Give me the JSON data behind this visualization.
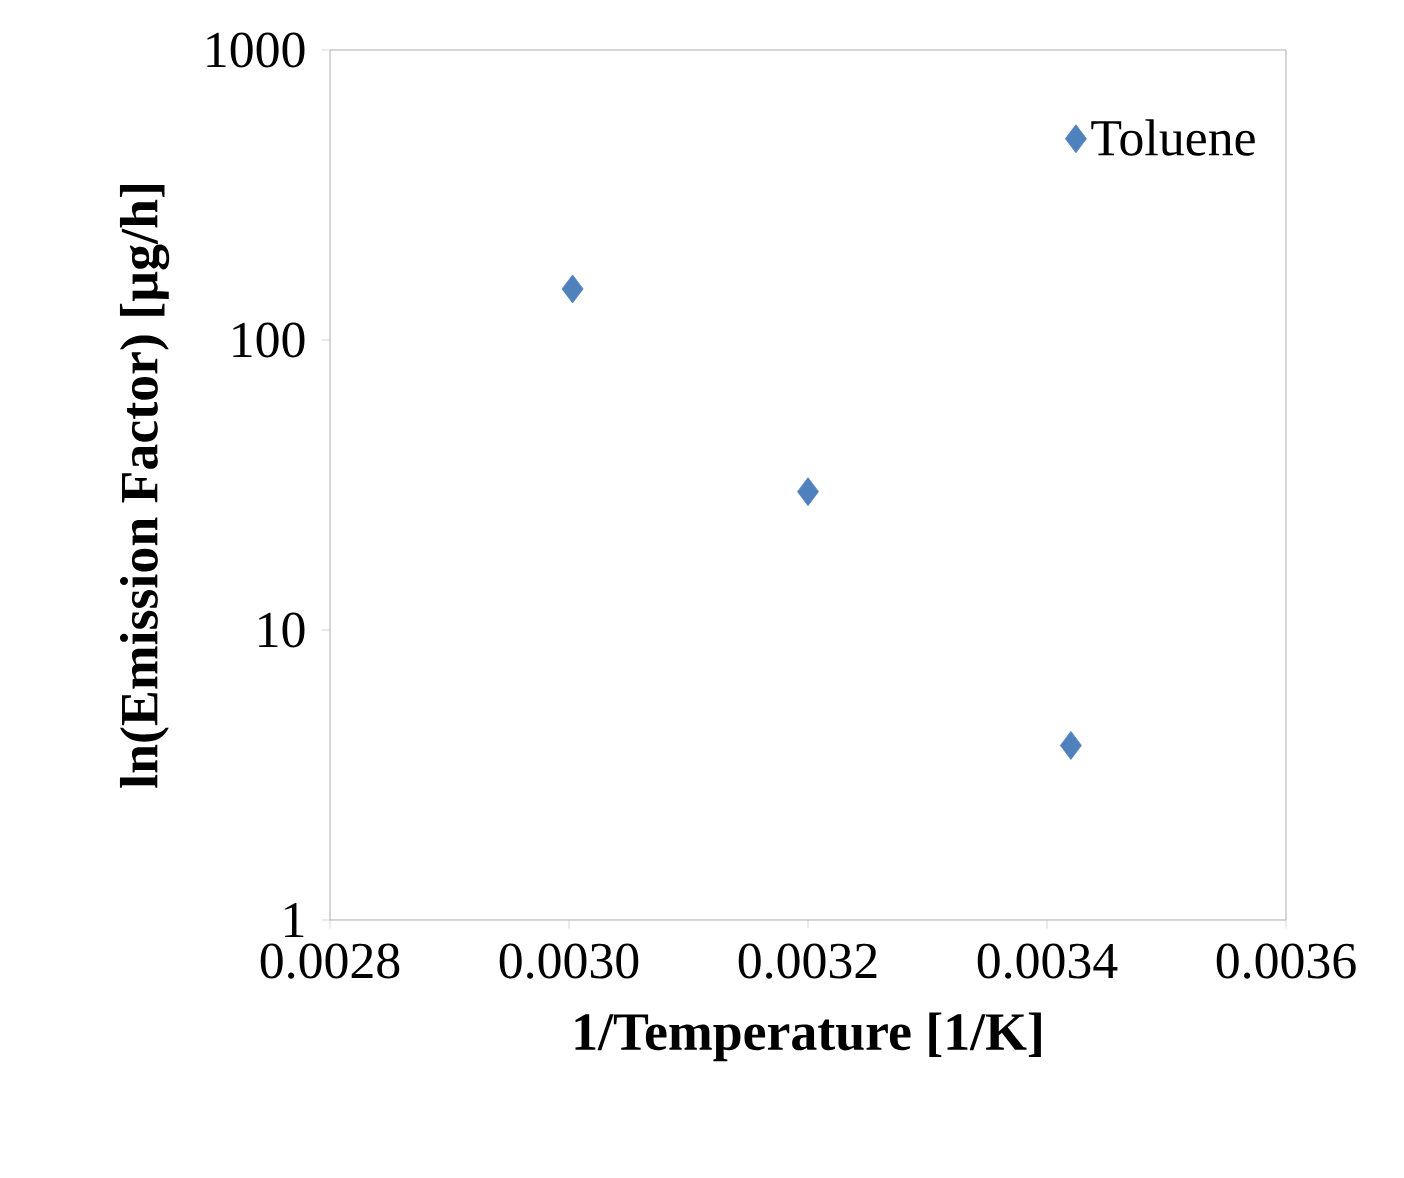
{
  "chart_data": {
    "type": "scatter",
    "xlabel": "1/Temperature [1/K]",
    "ylabel": "ln(Emission Factor) [µg/h]",
    "x": [
      0.003003,
      0.0032,
      0.00342
    ],
    "series": [
      {
        "name": "Toluene",
        "color": "#4f81bd",
        "values": [
          150,
          30,
          4
        ]
      }
    ],
    "marker": "diamond",
    "log": "y",
    "grid": false,
    "legend": "top right",
    "xlim": [
      0.0028,
      0.0036
    ],
    "ylim": [
      1,
      1000
    ],
    "xticks": [
      0.0028,
      {
        "value": 0.003,
        "label": "0.0030"
      },
      0.0032,
      0.0034,
      0.0036
    ],
    "yticks": [
      1,
      10,
      100,
      1000
    ]
  }
}
